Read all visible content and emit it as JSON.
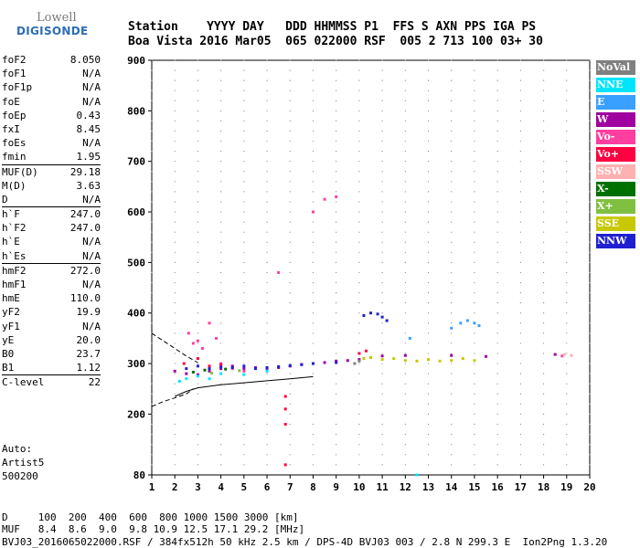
{
  "logo": {
    "line1": "Lowell",
    "line2": "DIGISONDE"
  },
  "header": {
    "row1": "Station    YYYY DAY   DDD HHMMSS P1  FFS S AXN PPS IGA PS",
    "row2": "Boa Vista 2016 Mar05  065 022000 RSF  005 2 713 100 03+ 30"
  },
  "params": [
    [
      {
        "label": "foF2",
        "value": "8.050"
      },
      {
        "label": "foF1",
        "value": "N/A"
      },
      {
        "label": "foF1p",
        "value": "N/A"
      },
      {
        "label": "foE",
        "value": "N/A"
      },
      {
        "label": "foEp",
        "value": "0.43"
      },
      {
        "label": "fxI",
        "value": "8.45"
      },
      {
        "label": "foEs",
        "value": "N/A"
      },
      {
        "label": "fmin",
        "value": "1.95"
      }
    ],
    [
      {
        "label": "MUF(D)",
        "value": "29.18"
      },
      {
        "label": "M(D)",
        "value": "3.63"
      },
      {
        "label": "D",
        "value": "N/A"
      }
    ],
    [
      {
        "label": "h`F",
        "value": "247.0"
      },
      {
        "label": "h`F2",
        "value": "247.0"
      },
      {
        "label": "h`E",
        "value": "N/A"
      },
      {
        "label": "h`Es",
        "value": "N/A"
      }
    ],
    [
      {
        "label": "hmF2",
        "value": "272.0"
      },
      {
        "label": "hmF1",
        "value": "N/A"
      },
      {
        "label": "hmE",
        "value": "110.0"
      },
      {
        "label": "yF2",
        "value": "19.9"
      },
      {
        "label": "yF1",
        "value": "N/A"
      },
      {
        "label": "yE",
        "value": "20.0"
      },
      {
        "label": "B0",
        "value": "23.7"
      },
      {
        "label": "B1",
        "value": "1.12"
      }
    ],
    [
      {
        "label": "C-level",
        "value": "22"
      }
    ]
  ],
  "auto": {
    "line1": "Auto:",
    "line2": "Artist5",
    "line3": "500200"
  },
  "legend": [
    {
      "label": "NoVal",
      "color": "#808080"
    },
    {
      "label": "NNE",
      "color": "#00e5ff"
    },
    {
      "label": "E",
      "color": "#3aa0ff"
    },
    {
      "label": "W",
      "color": "#a000a0"
    },
    {
      "label": "Vo-",
      "color": "#ff3fa0"
    },
    {
      "label": "Vo+",
      "color": "#ff0040"
    },
    {
      "label": "SSW",
      "color": "#ffb0b0"
    },
    {
      "label": "X-",
      "color": "#007000"
    },
    {
      "label": "X+",
      "color": "#80c040"
    },
    {
      "label": "SSE",
      "color": "#c8c800"
    },
    {
      "label": "NNW",
      "color": "#2020d0"
    }
  ],
  "footer": {
    "row1": "D     100  200  400  600  800 1000 1500 3000 [km]",
    "row2": "MUF   8.4  8.6  9.0  9.8 10.9 12.5 17.1 29.2 [MHz]",
    "row3": "BVJ03_2016065022000.RSF / 384fx512h 50 kHz 2.5 km / DPS-4D BVJ03 003 / 2.8 N 299.3 E  Ion2Png 1.3.20"
  },
  "chart_data": {
    "type": "scatter",
    "x_ticks": [
      "1",
      "2",
      "3",
      "4",
      "5",
      "6",
      "7",
      "8",
      "9",
      "10",
      "11",
      "12",
      "13",
      "14",
      "15",
      "16",
      "17",
      "18",
      "19",
      "20"
    ],
    "y_ticks": [
      "80",
      "200",
      "300",
      "400",
      "500",
      "600",
      "700",
      "800",
      "900"
    ],
    "xlim": [
      1,
      20
    ],
    "ylim": [
      80,
      900
    ],
    "grid": true,
    "legend_position": "right",
    "series": [
      {
        "name": "W",
        "color": "#a000a0",
        "points": [
          [
            2.0,
            285
          ],
          [
            2.5,
            280
          ],
          [
            3.0,
            278
          ],
          [
            3.5,
            285
          ],
          [
            4.0,
            290
          ],
          [
            4.5,
            295
          ],
          [
            5.0,
            290
          ],
          [
            5.5,
            292
          ],
          [
            6.0,
            290
          ],
          [
            6.5,
            292
          ],
          [
            7.0,
            295
          ],
          [
            7.5,
            298
          ],
          [
            8.0,
            300
          ],
          [
            8.5,
            302
          ],
          [
            9.0,
            305
          ],
          [
            9.5,
            306
          ],
          [
            10.0,
            308
          ],
          [
            10.5,
            312
          ],
          [
            11.0,
            315
          ],
          [
            12.0,
            316
          ],
          [
            14.0,
            316
          ],
          [
            15.5,
            314
          ],
          [
            18.5,
            318
          ]
        ]
      },
      {
        "name": "Vo-",
        "color": "#ff3fa0",
        "points": [
          [
            2.6,
            360
          ],
          [
            2.8,
            340
          ],
          [
            3.0,
            345
          ],
          [
            3.2,
            330
          ],
          [
            3.5,
            380
          ],
          [
            3.8,
            350
          ],
          [
            4.0,
            300
          ],
          [
            4.5,
            290
          ],
          [
            5.0,
            285
          ],
          [
            6.5,
            480
          ],
          [
            8.0,
            600
          ],
          [
            8.5,
            625
          ],
          [
            9.0,
            630
          ],
          [
            18.8,
            315
          ]
        ]
      },
      {
        "name": "Vo+",
        "color": "#ff0040",
        "points": [
          [
            2.4,
            300
          ],
          [
            3.0,
            310
          ],
          [
            3.5,
            295
          ],
          [
            4.0,
            298
          ],
          [
            6.8,
            235
          ],
          [
            6.8,
            210
          ],
          [
            6.8,
            180
          ],
          [
            6.8,
            100
          ],
          [
            10.0,
            320
          ],
          [
            10.3,
            325
          ]
        ]
      },
      {
        "name": "NNE",
        "color": "#00e5ff",
        "points": [
          [
            2.2,
            265
          ],
          [
            2.5,
            270
          ],
          [
            3.0,
            275
          ],
          [
            3.5,
            270
          ],
          [
            4.0,
            280
          ],
          [
            5.0,
            278
          ],
          [
            6.0,
            285
          ],
          [
            12.5,
            80
          ]
        ]
      },
      {
        "name": "E",
        "color": "#3aa0ff",
        "points": [
          [
            12.2,
            350
          ],
          [
            14.4,
            380
          ],
          [
            14.7,
            385
          ],
          [
            15.0,
            380
          ],
          [
            15.2,
            375
          ],
          [
            14.0,
            370
          ]
        ]
      },
      {
        "name": "NNW",
        "color": "#2020d0",
        "points": [
          [
            2.5,
            290
          ],
          [
            3.0,
            295
          ],
          [
            3.5,
            290
          ],
          [
            4.0,
            293
          ],
          [
            4.5,
            292
          ],
          [
            5.0,
            295
          ],
          [
            5.5,
            290
          ],
          [
            6.0,
            292
          ],
          [
            6.5,
            294
          ],
          [
            7.0,
            296
          ],
          [
            7.5,
            298
          ],
          [
            8.0,
            300
          ],
          [
            9.0,
            302
          ],
          [
            10.2,
            395
          ],
          [
            10.5,
            400
          ],
          [
            10.8,
            398
          ],
          [
            11.0,
            392
          ],
          [
            11.2,
            385
          ]
        ]
      },
      {
        "name": "SSE",
        "color": "#c8c800",
        "points": [
          [
            10.2,
            310
          ],
          [
            10.5,
            312
          ],
          [
            11.0,
            308
          ],
          [
            11.5,
            310
          ],
          [
            12.0,
            306
          ],
          [
            12.5,
            305
          ],
          [
            13.0,
            308
          ],
          [
            13.5,
            305
          ],
          [
            14.0,
            306
          ],
          [
            14.5,
            310
          ],
          [
            15.0,
            306
          ]
        ]
      },
      {
        "name": "X-",
        "color": "#007000",
        "points": [
          [
            2.8,
            283
          ],
          [
            3.3,
            287
          ],
          [
            4.2,
            289
          ]
        ]
      },
      {
        "name": "X+",
        "color": "#80c040",
        "points": [
          [
            3.6,
            281
          ],
          [
            4.8,
            286
          ]
        ]
      },
      {
        "name": "SSW",
        "color": "#ffb0b0",
        "points": [
          [
            18.9,
            318
          ],
          [
            19.2,
            316
          ]
        ]
      },
      {
        "name": "NoVal",
        "color": "#808080",
        "points": [
          [
            9.8,
            300
          ],
          [
            10.0,
            305
          ]
        ]
      }
    ],
    "virtual_height_curve": [
      [
        2.0,
        235
      ],
      [
        2.5,
        245
      ],
      [
        3.0,
        252
      ],
      [
        4.0,
        258
      ],
      [
        5.0,
        262
      ],
      [
        6.0,
        266
      ],
      [
        7.0,
        270
      ],
      [
        8.0,
        274
      ]
    ],
    "dashed_curve": [
      [
        1.0,
        215
      ],
      [
        1.5,
        225
      ],
      [
        2.0,
        232
      ],
      [
        2.5,
        240
      ],
      [
        2.8,
        250
      ]
    ],
    "dashed_upper": [
      [
        1.0,
        360
      ],
      [
        1.5,
        345
      ],
      [
        2.0,
        330
      ],
      [
        2.5,
        315
      ],
      [
        3.0,
        302
      ]
    ]
  }
}
